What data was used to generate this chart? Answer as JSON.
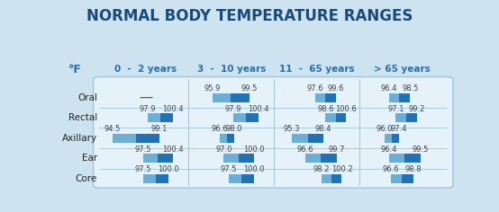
{
  "title": "NORMAL BODY TEMPERATURE RANGES",
  "title_fontsize": 12,
  "unit_label": "°F",
  "age_groups": [
    "0  -  2 years",
    "3  -  10 years",
    "11  -  65 years",
    "> 65 years"
  ],
  "row_labels": [
    "Oral",
    "Rectal",
    "Axillary",
    "Ear",
    "Core"
  ],
  "data": {
    "Oral": [
      null,
      null,
      95.9,
      99.5,
      97.6,
      99.6,
      96.4,
      98.5
    ],
    "Rectal": [
      97.9,
      100.4,
      97.9,
      100.4,
      98.6,
      100.6,
      97.1,
      99.2
    ],
    "Axillary": [
      94.5,
      99.1,
      96.6,
      98.0,
      95.3,
      98.4,
      96.0,
      97.4
    ],
    "Ear": [
      97.5,
      100.4,
      97.0,
      100.0,
      96.6,
      99.7,
      96.4,
      99.5
    ],
    "Core": [
      97.5,
      100.0,
      97.5,
      100.0,
      98.2,
      100.2,
      96.6,
      98.8
    ]
  },
  "bg_color": "#cde3f0",
  "table_bg": "#e5f2fa",
  "bar_color_left": "#6baed6",
  "bar_color_right": "#2171b5",
  "header_color": "#2a6ea6",
  "row_label_color": "#222222",
  "value_color": "#444444",
  "title_color": "#1a4a7a",
  "divider_color": "#9dc5dc",
  "global_min": 94.0,
  "global_max": 101.5
}
